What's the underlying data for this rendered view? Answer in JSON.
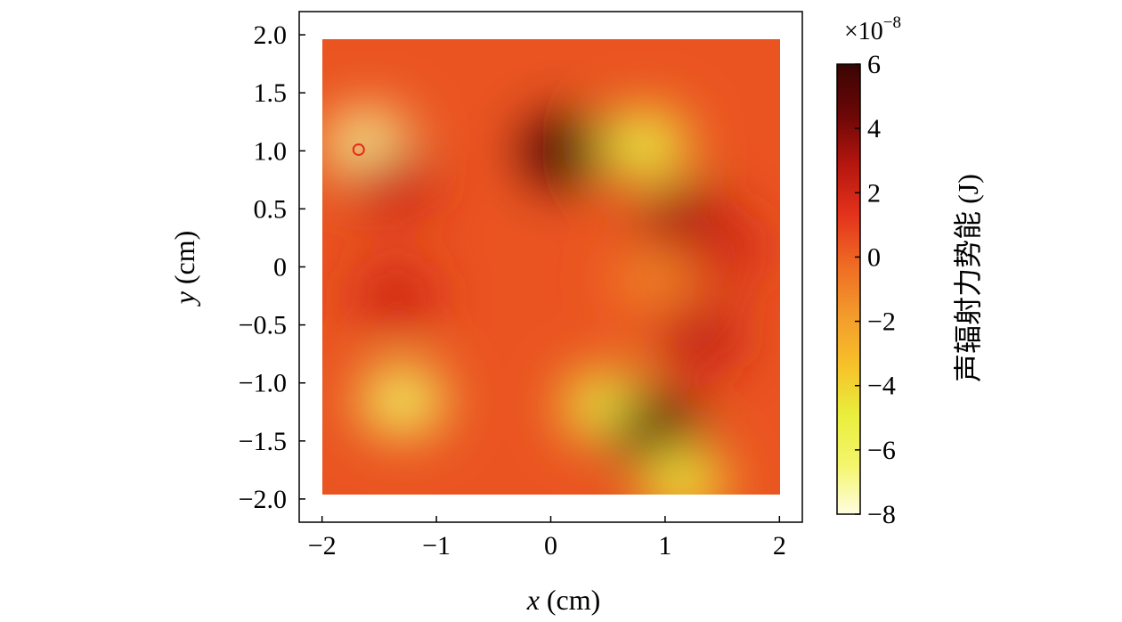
{
  "chart_data": {
    "type": "heatmap",
    "title": "",
    "xlabel": {
      "var": "x",
      "unit": " (cm)"
    },
    "ylabel": {
      "var": "y",
      "unit": " (cm)"
    },
    "xlim": [
      -2.2,
      2.2
    ],
    "ylim": [
      -2.2,
      2.2
    ],
    "data_extent": {
      "x": [
        -2,
        2
      ],
      "y": [
        -2,
        2
      ]
    },
    "x_ticks": [
      {
        "value": -2,
        "label": "−2"
      },
      {
        "value": -1,
        "label": "−1"
      },
      {
        "value": 0,
        "label": "0"
      },
      {
        "value": 1,
        "label": "1"
      },
      {
        "value": 2,
        "label": "2"
      }
    ],
    "y_ticks": [
      {
        "value": 2.0,
        "label": "2.0"
      },
      {
        "value": 1.5,
        "label": "1.5"
      },
      {
        "value": 1.0,
        "label": "1.0"
      },
      {
        "value": 0.5,
        "label": "0.5"
      },
      {
        "value": 0,
        "label": "0"
      },
      {
        "value": -0.5,
        "label": "−0.5"
      },
      {
        "value": -1.0,
        "label": "−1.0"
      },
      {
        "value": -1.5,
        "label": "−1.5"
      },
      {
        "value": -2.0,
        "label": "−2.0"
      }
    ],
    "colorbar": {
      "label": "声辐射力势能 (J)",
      "multiplier": {
        "base": "×10",
        "exp": "−8"
      },
      "range": [
        -8,
        6
      ],
      "ticks": [
        {
          "value": 6,
          "label": "6"
        },
        {
          "value": 4,
          "label": "4"
        },
        {
          "value": 2,
          "label": "2"
        },
        {
          "value": 0,
          "label": "0"
        },
        {
          "value": -2,
          "label": "−2"
        },
        {
          "value": -4,
          "label": "−4"
        },
        {
          "value": -6,
          "label": "−6"
        },
        {
          "value": -8,
          "label": "−8"
        }
      ],
      "colormap": [
        "#fffde0",
        "#f4f56a",
        "#e9ee3c",
        "#f7c02a",
        "#f39a2c",
        "#ef6a24",
        "#e3321c",
        "#b4160e",
        "#6a0707",
        "#3a0502"
      ]
    },
    "background_level": 0.4,
    "features": [
      {
        "x": -1.6,
        "y": 1.05,
        "level": -7.0
      },
      {
        "x": -1.38,
        "y": 0.72,
        "level": 2.2
      },
      {
        "x": 0.12,
        "y": 1.0,
        "level": 6.0
      },
      {
        "x": 0.82,
        "y": 1.05,
        "level": -5.0
      },
      {
        "x": 1.15,
        "y": 0.42,
        "level": 3.5
      },
      {
        "x": 1.5,
        "y": 0.15,
        "level": 2.0
      },
      {
        "x": -1.35,
        "y": -0.25,
        "level": 2.0
      },
      {
        "x": 0.9,
        "y": -0.1,
        "level": -1.0
      },
      {
        "x": 1.3,
        "y": -0.6,
        "level": 2.5
      },
      {
        "x": -1.3,
        "y": -1.15,
        "level": -6.0
      },
      {
        "x": 0.48,
        "y": -1.2,
        "level": -5.0
      },
      {
        "x": 0.92,
        "y": -1.4,
        "level": 6.0
      },
      {
        "x": 1.15,
        "y": -1.85,
        "level": -4.5
      }
    ],
    "marker": {
      "shape": "circle",
      "x": -1.68,
      "y": 1.01,
      "color": "#e8281e"
    }
  }
}
